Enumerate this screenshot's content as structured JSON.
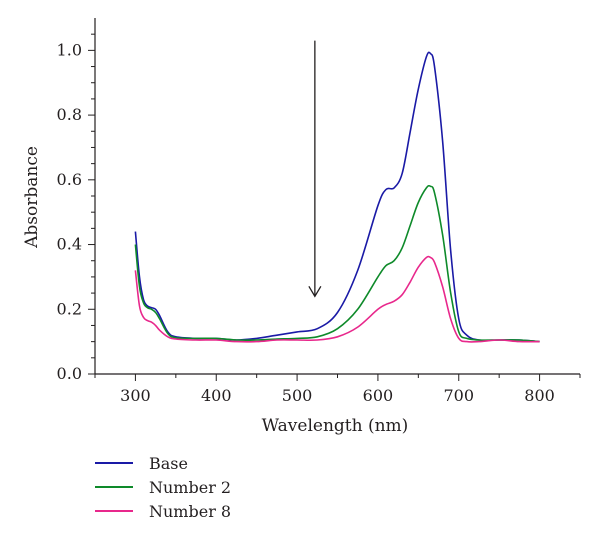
{
  "chart_data": {
    "type": "line",
    "xlabel": "Wavelength (nm)",
    "ylabel": "Absorbance",
    "xlim": [
      250,
      850
    ],
    "ylim": [
      0.0,
      1.1
    ],
    "xticks": [
      300,
      400,
      500,
      600,
      700,
      800
    ],
    "yticks": [
      0.0,
      0.2,
      0.4,
      0.6,
      0.8,
      1.0
    ],
    "xtick_labels": [
      "300",
      "400",
      "500",
      "600",
      "700",
      "800"
    ],
    "ytick_labels": [
      "0.0",
      "0.2",
      "0.4",
      "0.6",
      "0.8",
      "1.0"
    ],
    "grid": false,
    "legend_position": "below",
    "annotation": {
      "type": "arrow",
      "x": 522,
      "y_start": 1.03,
      "y_end": 0.24,
      "direction": "down"
    },
    "series": [
      {
        "name": "Base",
        "color": "#1a1aa6",
        "x": [
          300,
          305,
          310,
          315,
          320,
          325,
          330,
          340,
          350,
          375,
          400,
          425,
          450,
          475,
          500,
          525,
          550,
          575,
          600,
          610,
          620,
          630,
          640,
          650,
          660,
          665,
          670,
          680,
          690,
          700,
          710,
          725,
          750,
          775,
          800
        ],
        "y": [
          0.44,
          0.3,
          0.23,
          0.21,
          0.205,
          0.2,
          0.18,
          0.13,
          0.115,
          0.11,
          0.11,
          0.105,
          0.11,
          0.12,
          0.13,
          0.14,
          0.19,
          0.32,
          0.52,
          0.57,
          0.575,
          0.62,
          0.75,
          0.88,
          0.98,
          0.99,
          0.95,
          0.72,
          0.38,
          0.17,
          0.12,
          0.105,
          0.105,
          0.105,
          0.1
        ]
      },
      {
        "name": "Number 2",
        "color": "#0e8a2a",
        "x": [
          300,
          305,
          310,
          315,
          320,
          325,
          330,
          340,
          350,
          375,
          400,
          425,
          450,
          475,
          500,
          525,
          550,
          575,
          600,
          610,
          620,
          630,
          640,
          650,
          660,
          665,
          670,
          680,
          690,
          700,
          710,
          725,
          750,
          775,
          800
        ],
        "y": [
          0.4,
          0.27,
          0.22,
          0.205,
          0.2,
          0.19,
          0.17,
          0.125,
          0.112,
          0.11,
          0.11,
          0.105,
          0.105,
          0.108,
          0.11,
          0.115,
          0.14,
          0.2,
          0.3,
          0.335,
          0.35,
          0.39,
          0.46,
          0.53,
          0.575,
          0.58,
          0.56,
          0.43,
          0.25,
          0.13,
          0.11,
          0.105,
          0.105,
          0.105,
          0.1
        ]
      },
      {
        "name": "Number 8",
        "color": "#e8288c",
        "x": [
          300,
          305,
          310,
          315,
          320,
          325,
          330,
          340,
          350,
          375,
          400,
          425,
          450,
          475,
          500,
          525,
          550,
          575,
          600,
          610,
          620,
          630,
          640,
          650,
          660,
          665,
          670,
          680,
          690,
          700,
          710,
          725,
          750,
          775,
          800
        ],
        "y": [
          0.32,
          0.21,
          0.175,
          0.165,
          0.16,
          0.15,
          0.135,
          0.115,
          0.108,
          0.105,
          0.105,
          0.1,
          0.1,
          0.105,
          0.105,
          0.105,
          0.115,
          0.145,
          0.2,
          0.215,
          0.225,
          0.245,
          0.285,
          0.33,
          0.36,
          0.36,
          0.345,
          0.27,
          0.17,
          0.11,
          0.1,
          0.1,
          0.105,
          0.1,
          0.1
        ]
      }
    ]
  }
}
